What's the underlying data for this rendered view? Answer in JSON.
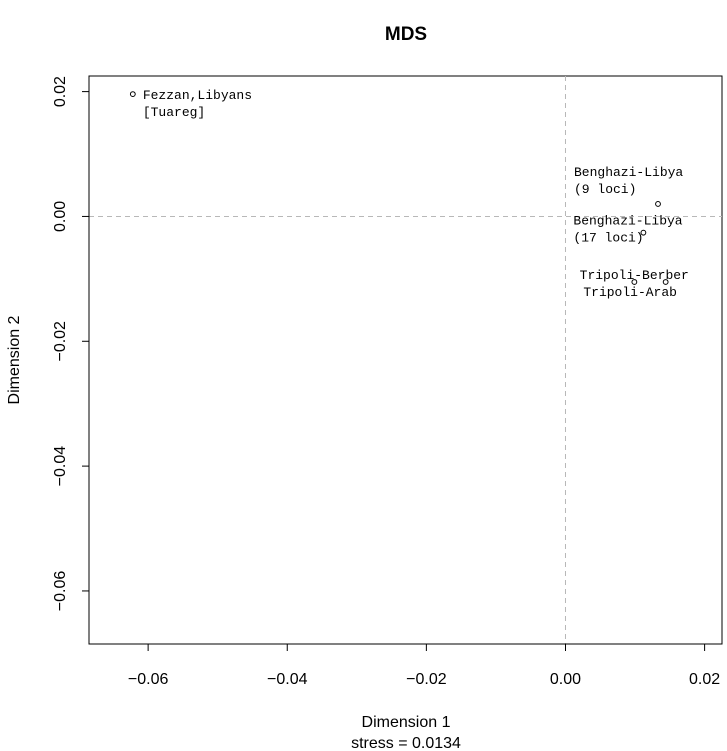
{
  "chart_data": {
    "type": "scatter",
    "title": "MDS",
    "xlabel": "Dimension 1",
    "ylabel": "Dimension 2",
    "subtitle": "stress = 0.0134",
    "xlim": [
      -0.0685,
      0.0225
    ],
    "ylim": [
      -0.0685,
      0.0225
    ],
    "xticks": [
      -0.06,
      -0.04,
      -0.02,
      0.0,
      0.02
    ],
    "xtick_labels": [
      "−0.06",
      "−0.04",
      "−0.02",
      "0.00",
      "0.02"
    ],
    "yticks": [
      -0.06,
      -0.04,
      -0.02,
      0.0,
      0.02
    ],
    "ytick_labels": [
      "−0.06",
      "−0.04",
      "−0.02",
      "0.00",
      "0.02"
    ],
    "reference_lines": {
      "x": 0,
      "y": 0,
      "style": "dashed"
    },
    "grid": false,
    "points": [
      {
        "x": -0.0622,
        "y": 0.0196,
        "label_lines": [
          "Fezzan,Libyans",
          "[Tuareg]"
        ]
      },
      {
        "x": 0.0133,
        "y": 0.002,
        "label_lines": [
          "Benghazi-Libya",
          "(9 loci)"
        ]
      },
      {
        "x": 0.0112,
        "y": -0.0026,
        "label_lines": [
          "Benghazi-Libya",
          "(17 loci)"
        ]
      },
      {
        "x": 0.0144,
        "y": -0.0105,
        "label_lines": [
          "Tripoli-Berber"
        ]
      },
      {
        "x": 0.0099,
        "y": -0.0105,
        "label_lines": [
          "Tripoli-Arab"
        ]
      }
    ]
  }
}
